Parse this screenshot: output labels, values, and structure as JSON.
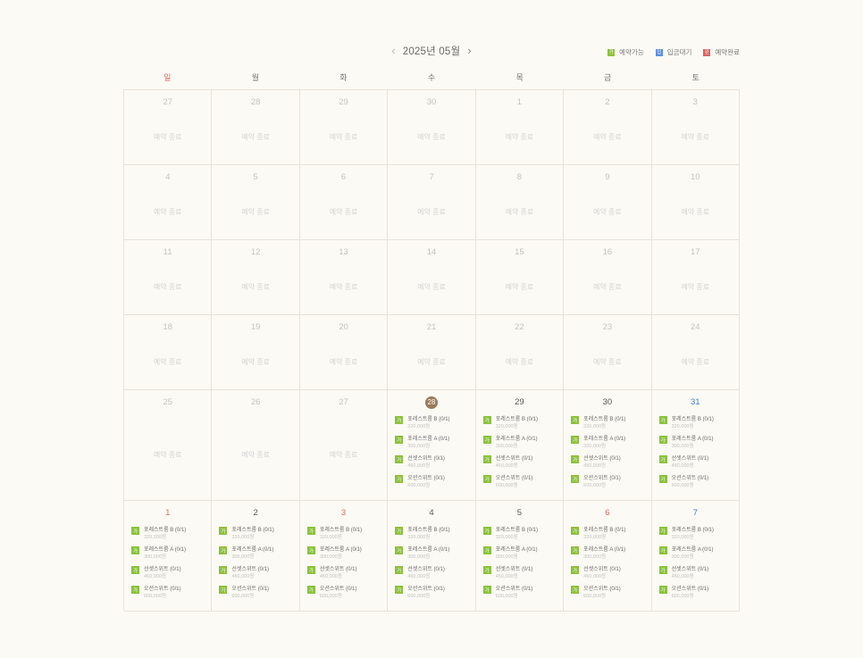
{
  "calendar": {
    "month_title": "2025년 05월",
    "prev_icon": "‹",
    "next_icon": "›"
  },
  "legend": [
    {
      "badge": "가",
      "label": "예약가능",
      "color": "#8bc23c"
    },
    {
      "badge": "입",
      "label": "입금대기",
      "color": "#5b8fe0"
    },
    {
      "badge": "완",
      "label": "예약완료",
      "color": "#e06060"
    }
  ],
  "weekdays": [
    "일",
    "월",
    "화",
    "수",
    "목",
    "금",
    "토"
  ],
  "closed_label": "예약 종료",
  "rooms": [
    {
      "badge": "가",
      "name": "포레스트룸 B (0/1)",
      "price": "320,000원"
    },
    {
      "badge": "가",
      "name": "포레스트룸 A (0/1)",
      "price": "300,000원"
    },
    {
      "badge": "가",
      "name": "선셋스위트 (0/1)",
      "price": "450,000원"
    },
    {
      "badge": "가",
      "name": "오션스위트 (0/1)",
      "price": "600,000원"
    }
  ],
  "weeks": [
    [
      {
        "d": "27"
      },
      {
        "d": "28"
      },
      {
        "d": "29"
      },
      {
        "d": "30"
      },
      {
        "d": "1"
      },
      {
        "d": "2"
      },
      {
        "d": "3"
      }
    ],
    [
      {
        "d": "4"
      },
      {
        "d": "5"
      },
      {
        "d": "6"
      },
      {
        "d": "7"
      },
      {
        "d": "8"
      },
      {
        "d": "9"
      },
      {
        "d": "10"
      }
    ],
    [
      {
        "d": "11"
      },
      {
        "d": "12"
      },
      {
        "d": "13"
      },
      {
        "d": "14"
      },
      {
        "d": "15"
      },
      {
        "d": "16"
      },
      {
        "d": "17"
      }
    ],
    [
      {
        "d": "18"
      },
      {
        "d": "19"
      },
      {
        "d": "20"
      },
      {
        "d": "21"
      },
      {
        "d": "22"
      },
      {
        "d": "23"
      },
      {
        "d": "24"
      }
    ],
    [
      {
        "d": "25"
      },
      {
        "d": "26"
      },
      {
        "d": "27"
      },
      {
        "d": "28",
        "active": true,
        "today": true
      },
      {
        "d": "29",
        "active": true
      },
      {
        "d": "30",
        "active": true
      },
      {
        "d": "31",
        "active": true
      }
    ],
    [
      {
        "d": "1",
        "active": true
      },
      {
        "d": "2",
        "active": true
      },
      {
        "d": "3",
        "active": true,
        "holiday": true
      },
      {
        "d": "4",
        "active": true
      },
      {
        "d": "5",
        "active": true
      },
      {
        "d": "6",
        "active": true,
        "holiday": true
      },
      {
        "d": "7",
        "active": true
      }
    ]
  ]
}
